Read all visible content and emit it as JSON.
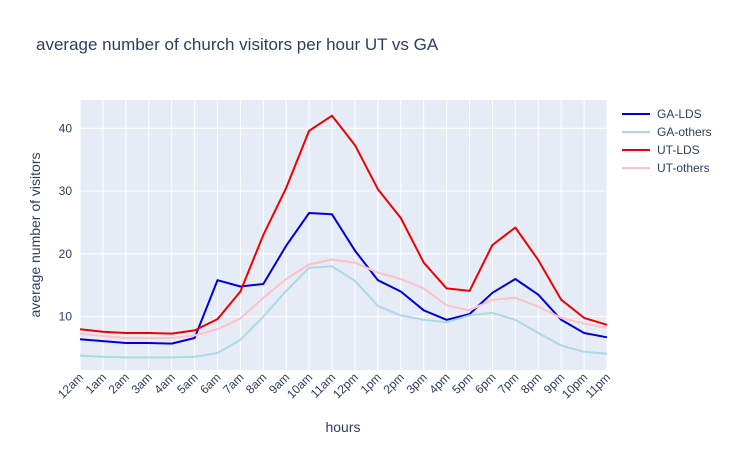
{
  "chart_data": {
    "type": "line",
    "title": "average number of church visitors per hour UT vs GA",
    "xlabel": "hours",
    "ylabel": "average number of visitors",
    "categories": [
      "12am",
      "1am",
      "2am",
      "3am",
      "4am",
      "5am",
      "6am",
      "7am",
      "8am",
      "9am",
      "10am",
      "11am",
      "12pm",
      "1pm",
      "2pm",
      "3pm",
      "4pm",
      "5pm",
      "6pm",
      "7pm",
      "8pm",
      "9pm",
      "10pm",
      "11pm"
    ],
    "y_ticks": [
      10,
      20,
      30,
      40
    ],
    "ylim": [
      1.5,
      44.5
    ],
    "grid": true,
    "legend_position": "top-right",
    "series": [
      {
        "name": "GA-LDS",
        "color": "#0000dd",
        "values": [
          6.4,
          6.1,
          5.8,
          5.8,
          5.7,
          6.6,
          15.8,
          14.8,
          15.2,
          21.3,
          26.5,
          26.3,
          20.5,
          15.8,
          14.0,
          11.0,
          9.5,
          10.4,
          13.8,
          16.0,
          13.5,
          9.5,
          7.4,
          6.7
        ]
      },
      {
        "name": "GA-others",
        "color": "#add8e6",
        "values": [
          3.8,
          3.6,
          3.5,
          3.5,
          3.5,
          3.6,
          4.2,
          6.3,
          10.0,
          14.1,
          17.8,
          18.0,
          15.7,
          11.7,
          10.2,
          9.5,
          9.1,
          10.2,
          10.6,
          9.5,
          7.4,
          5.4,
          4.4,
          4.1
        ]
      },
      {
        "name": "UT-LDS",
        "color": "#ee0000",
        "values": [
          8.0,
          7.6,
          7.4,
          7.4,
          7.3,
          7.8,
          9.6,
          14.0,
          23.0,
          30.5,
          39.6,
          42.0,
          37.3,
          30.3,
          25.7,
          18.6,
          14.5,
          14.1,
          21.4,
          24.2,
          19.0,
          12.7,
          9.8,
          8.7
        ]
      },
      {
        "name": "UT-others",
        "color": "#ffc0cb",
        "values": [
          7.3,
          6.9,
          6.6,
          6.6,
          6.6,
          7.0,
          8.0,
          9.7,
          13.0,
          16.0,
          18.3,
          19.1,
          18.6,
          17.0,
          16.0,
          14.5,
          11.8,
          11.0,
          12.7,
          13.0,
          11.6,
          9.8,
          8.9,
          8.2
        ]
      }
    ]
  }
}
